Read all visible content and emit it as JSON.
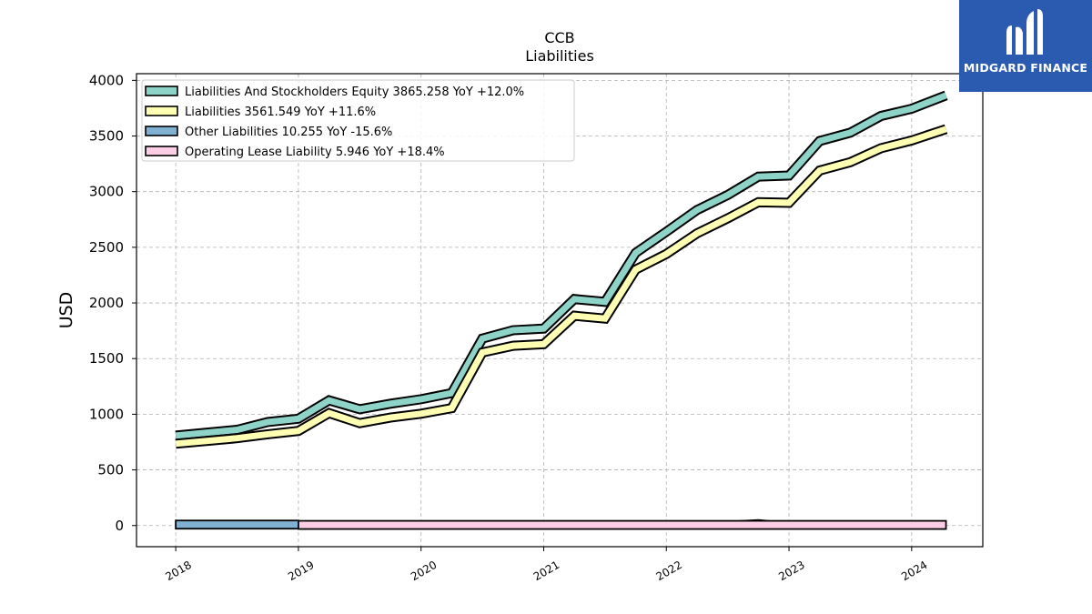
{
  "chart_data": {
    "type": "line",
    "title": "CCB",
    "subtitle": "Liabilities",
    "ylabel": "USD",
    "xlabel": "",
    "ylim": [
      -190,
      4060
    ],
    "xlim": [
      2017.68,
      2024.58
    ],
    "yticks": [
      0,
      500,
      1000,
      1500,
      2000,
      2500,
      3000,
      3500,
      4000
    ],
    "xticks": [
      2018,
      2019,
      2020,
      2021,
      2022,
      2023,
      2024
    ],
    "grid": true,
    "legend_position": "upper-left",
    "series": [
      {
        "name": "Liabilities And Stockholders Equity  3865.258 YoY +12.0%",
        "color": "#8dd3c7",
        "x": [
          2018.0,
          2018.5,
          2018.75,
          2019.0,
          2019.25,
          2019.5,
          2019.75,
          2020.0,
          2020.25,
          2020.5,
          2020.75,
          2021.0,
          2021.25,
          2021.5,
          2021.75,
          2022.0,
          2022.25,
          2022.5,
          2022.75,
          2023.0,
          2023.25,
          2023.5,
          2023.75,
          2024.0,
          2024.28
        ],
        "values": [
          808,
          860,
          930,
          960,
          1125,
          1045,
          1095,
          1135,
          1190,
          1680,
          1755,
          1770,
          2035,
          2010,
          2450,
          2640,
          2835,
          2970,
          3135,
          3145,
          3455,
          3530,
          3680,
          3745,
          3865
        ]
      },
      {
        "name": "Liabilities  3561.549 YoY +11.6%",
        "color": "#ffffb3",
        "x": [
          2018.0,
          2018.5,
          2018.75,
          2019.0,
          2019.25,
          2019.5,
          2019.75,
          2020.0,
          2020.25,
          2020.5,
          2020.75,
          2021.0,
          2021.25,
          2021.5,
          2021.75,
          2022.0,
          2022.25,
          2022.5,
          2022.75,
          2023.0,
          2023.25,
          2023.5,
          2023.75,
          2024.0,
          2024.28
        ],
        "values": [
          735,
          785,
          820,
          850,
          1010,
          920,
          970,
          1005,
          1055,
          1555,
          1615,
          1630,
          1885,
          1860,
          2300,
          2440,
          2625,
          2760,
          2905,
          2900,
          3190,
          3265,
          3390,
          3460,
          3562
        ]
      },
      {
        "name": "Other Liabilities  10.255 YoY -15.6%",
        "color": "#80b1d3",
        "x": [
          2018.0,
          2019.0
        ],
        "values": [
          5,
          12
        ]
      },
      {
        "name": "Operating Lease Liability  5.946 YoY +18.4%",
        "color": "#fccde5",
        "x": [
          2019.0,
          2024.28
        ],
        "values": [
          5,
          6
        ]
      }
    ],
    "other_liabilities_trace": {
      "x": [
        2022.0,
        2022.5,
        2022.75,
        2023.0,
        2023.5,
        2023.75,
        2024.0,
        2024.28
      ],
      "values": [
        20,
        35,
        50,
        25,
        35,
        28,
        22,
        20
      ]
    }
  },
  "logo": {
    "text": "MIDGARD FINANCE"
  }
}
